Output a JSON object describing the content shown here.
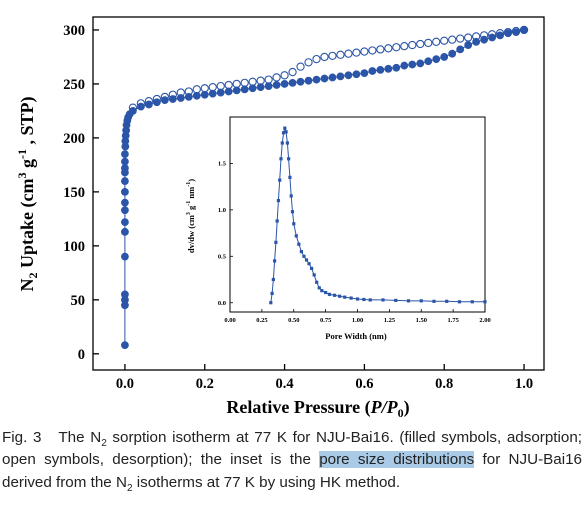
{
  "chart_data": [
    {
      "id": "main",
      "type": "scatter",
      "xlabel": "Relative Pressure (P/P0)",
      "xlabel_parts": {
        "main": "Relative Pressure (",
        "italic": "P/P",
        "sub": "0",
        "end": ")"
      },
      "ylabel": "N2 Uptake (cm3 g-1 , STP)",
      "ylabel_parts": {
        "a": "N",
        "a_sub": "2",
        "b": " Uptake (cm",
        "b_sup": "3",
        "c": " g",
        "c_sup": "-1",
        "d": " , STP)"
      },
      "xlim": [
        -0.08,
        1.05
      ],
      "ylim": [
        -15,
        312
      ],
      "x_ticks": [
        0.0,
        0.2,
        0.4,
        0.6,
        0.8,
        1.0
      ],
      "x_tick_labels": [
        "0.0",
        "0.2",
        "0.4",
        "0.6",
        "0.8",
        "1.0"
      ],
      "y_ticks": [
        0,
        50,
        100,
        150,
        200,
        250,
        300
      ],
      "y_tick_labels": [
        "0",
        "50",
        "100",
        "150",
        "200",
        "250",
        "300"
      ],
      "grid": false,
      "legend": "none",
      "series": [
        {
          "label": "adsorption",
          "marker": "filled-circle",
          "color": "#2b55a8",
          "points": [
            [
              0.0,
              8
            ],
            [
              0.0,
              45
            ],
            [
              0.0,
              50
            ],
            [
              0.0,
              55
            ],
            [
              0.0,
              90
            ],
            [
              0.0,
              113
            ],
            [
              0.0,
              122
            ],
            [
              0.0,
              133
            ],
            [
              0.0,
              140
            ],
            [
              0.0,
              150
            ],
            [
              0.0,
              160
            ],
            [
              0.0,
              168
            ],
            [
              0.0,
              172
            ],
            [
              0.0,
              178
            ],
            [
              0.0,
              185
            ],
            [
              0.001,
              192
            ],
            [
              0.001,
              197
            ],
            [
              0.002,
              202
            ],
            [
              0.003,
              207
            ],
            [
              0.004,
              212
            ],
            [
              0.006,
              216
            ],
            [
              0.008,
              219
            ],
            [
              0.012,
              222
            ],
            [
              0.02,
              225
            ],
            [
              0.04,
              229
            ],
            [
              0.06,
              231
            ],
            [
              0.08,
              233
            ],
            [
              0.1,
              235
            ],
            [
              0.12,
              236
            ],
            [
              0.14,
              237
            ],
            [
              0.16,
              238
            ],
            [
              0.18,
              239
            ],
            [
              0.2,
              240
            ],
            [
              0.22,
              241
            ],
            [
              0.24,
              242
            ],
            [
              0.26,
              243
            ],
            [
              0.28,
              244
            ],
            [
              0.3,
              245
            ],
            [
              0.32,
              246
            ],
            [
              0.34,
              247
            ],
            [
              0.36,
              248
            ],
            [
              0.38,
              249
            ],
            [
              0.4,
              250
            ],
            [
              0.42,
              251
            ],
            [
              0.44,
              252
            ],
            [
              0.46,
              253
            ],
            [
              0.48,
              254
            ],
            [
              0.5,
              255
            ],
            [
              0.52,
              256
            ],
            [
              0.54,
              257
            ],
            [
              0.56,
              258
            ],
            [
              0.58,
              259
            ],
            [
              0.6,
              260
            ],
            [
              0.62,
              262
            ],
            [
              0.64,
              263
            ],
            [
              0.66,
              264
            ],
            [
              0.68,
              265
            ],
            [
              0.7,
              267
            ],
            [
              0.72,
              268
            ],
            [
              0.74,
              269
            ],
            [
              0.76,
              271
            ],
            [
              0.78,
              273
            ],
            [
              0.8,
              275
            ],
            [
              0.82,
              278
            ],
            [
              0.84,
              282
            ],
            [
              0.86,
              286
            ],
            [
              0.88,
              289
            ],
            [
              0.9,
              291
            ],
            [
              0.92,
              293
            ],
            [
              0.94,
              295
            ],
            [
              0.96,
              297
            ],
            [
              0.98,
              298
            ],
            [
              1.0,
              300
            ]
          ]
        },
        {
          "label": "desorption",
          "marker": "open-circle",
          "color": "#2b55a8",
          "points": [
            [
              1.0,
              300
            ],
            [
              0.98,
              299
            ],
            [
              0.96,
              298
            ],
            [
              0.94,
              297
            ],
            [
              0.92,
              296
            ],
            [
              0.9,
              295
            ],
            [
              0.88,
              294
            ],
            [
              0.86,
              293
            ],
            [
              0.84,
              292
            ],
            [
              0.82,
              291
            ],
            [
              0.8,
              290
            ],
            [
              0.78,
              289
            ],
            [
              0.76,
              288
            ],
            [
              0.74,
              287
            ],
            [
              0.72,
              286
            ],
            [
              0.7,
              285
            ],
            [
              0.68,
              284
            ],
            [
              0.66,
              283
            ],
            [
              0.64,
              282
            ],
            [
              0.62,
              281
            ],
            [
              0.6,
              280
            ],
            [
              0.58,
              279
            ],
            [
              0.56,
              278
            ],
            [
              0.54,
              277
            ],
            [
              0.52,
              276
            ],
            [
              0.5,
              275
            ],
            [
              0.48,
              273
            ],
            [
              0.46,
              270
            ],
            [
              0.44,
              266
            ],
            [
              0.42,
              261
            ],
            [
              0.4,
              258
            ],
            [
              0.38,
              256
            ],
            [
              0.36,
              254
            ],
            [
              0.34,
              253
            ],
            [
              0.32,
              252
            ],
            [
              0.3,
              251
            ],
            [
              0.28,
              250
            ],
            [
              0.26,
              249
            ],
            [
              0.24,
              248
            ],
            [
              0.22,
              247
            ],
            [
              0.2,
              246
            ],
            [
              0.18,
              245
            ],
            [
              0.16,
              243
            ],
            [
              0.14,
              242
            ],
            [
              0.12,
              240
            ],
            [
              0.1,
              238
            ],
            [
              0.08,
              236
            ],
            [
              0.06,
              234
            ],
            [
              0.04,
              232
            ],
            [
              0.02,
              228
            ]
          ]
        }
      ]
    },
    {
      "id": "inset",
      "type": "line",
      "xlabel": "Pore Width (nm)",
      "ylabel": "dv/dw (cm3 g-1 nm-1)",
      "ylabel_parts": {
        "a": "dv/dw (cm",
        "a_sup": "3",
        "b": " g",
        "b_sup": "-1",
        "c": " nm",
        "c_sup": "-1",
        "d": ")"
      },
      "xlim": [
        0.0,
        2.0
      ],
      "ylim": [
        -0.1,
        2.0
      ],
      "x_ticks": [
        0.0,
        0.25,
        0.5,
        0.75,
        1.0,
        1.25,
        1.5,
        1.75,
        2.0
      ],
      "x_tick_labels": [
        "0.00",
        "0.25",
        "0.50",
        "0.75",
        "1.00",
        "1.25",
        "1.50",
        "1.75",
        "2.00"
      ],
      "y_ticks": [
        0.0,
        0.5,
        1.0,
        1.5
      ],
      "y_tick_labels": [
        "0.0",
        "0.5",
        "1.0",
        "1.5"
      ],
      "grid": false,
      "legend": "none",
      "series": [
        {
          "label": "HK pore size distribution",
          "marker": "filled-square",
          "color": "#2b55a8",
          "points": [
            [
              0.32,
              0.0
            ],
            [
              0.33,
              0.1
            ],
            [
              0.34,
              0.25
            ],
            [
              0.35,
              0.45
            ],
            [
              0.36,
              0.65
            ],
            [
              0.37,
              0.88
            ],
            [
              0.38,
              1.1
            ],
            [
              0.39,
              1.32
            ],
            [
              0.4,
              1.55
            ],
            [
              0.41,
              1.72
            ],
            [
              0.42,
              1.83
            ],
            [
              0.43,
              1.88
            ],
            [
              0.44,
              1.84
            ],
            [
              0.45,
              1.72
            ],
            [
              0.46,
              1.55
            ],
            [
              0.47,
              1.35
            ],
            [
              0.48,
              1.15
            ],
            [
              0.49,
              0.98
            ],
            [
              0.5,
              0.85
            ],
            [
              0.52,
              0.72
            ],
            [
              0.54,
              0.63
            ],
            [
              0.56,
              0.55
            ],
            [
              0.58,
              0.5
            ],
            [
              0.6,
              0.46
            ],
            [
              0.62,
              0.42
            ],
            [
              0.64,
              0.37
            ],
            [
              0.66,
              0.3
            ],
            [
              0.68,
              0.22
            ],
            [
              0.7,
              0.16
            ],
            [
              0.72,
              0.13
            ],
            [
              0.75,
              0.11
            ],
            [
              0.78,
              0.09
            ],
            [
              0.82,
              0.08
            ],
            [
              0.86,
              0.07
            ],
            [
              0.9,
              0.06
            ],
            [
              0.95,
              0.05
            ],
            [
              1.0,
              0.04
            ],
            [
              1.05,
              0.035
            ],
            [
              1.1,
              0.03
            ],
            [
              1.2,
              0.03
            ],
            [
              1.3,
              0.025
            ],
            [
              1.4,
              0.02
            ],
            [
              1.5,
              0.02
            ],
            [
              1.6,
              0.015
            ],
            [
              1.7,
              0.015
            ],
            [
              1.8,
              0.01
            ],
            [
              1.9,
              0.01
            ],
            [
              2.0,
              0.01
            ]
          ]
        }
      ]
    }
  ],
  "caption": {
    "label": "Fig. 3",
    "part1": "The N",
    "sub1": "2",
    "part2": " sorption isotherm at 77 K for NJU-Bai16. (filled symbols, adsorption; open symbols, desorption); the inset is the ",
    "highlight": "pore size distributions",
    "part3": " for NJU-Bai16 derived from the N",
    "sub2": "2",
    "part4": " isotherms at 77 K by using HK method."
  },
  "colors": {
    "marker": "#2b55a8",
    "axis": "#000000",
    "highlight": "#a9cbe8",
    "caption_text": "#222222"
  }
}
